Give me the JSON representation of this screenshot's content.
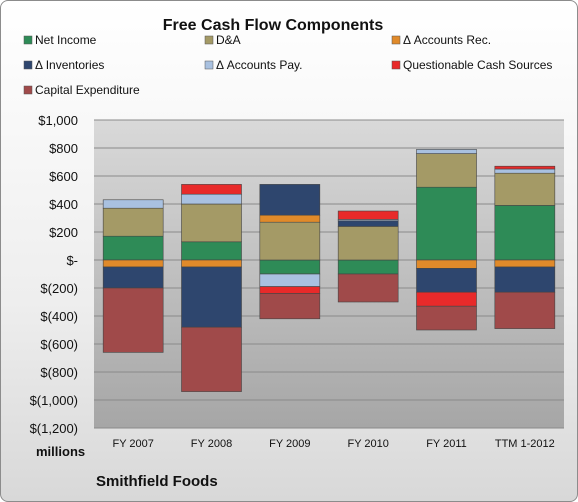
{
  "chart_data": {
    "type": "bar",
    "stacked": true,
    "title": "Free Cash Flow Components",
    "units_label": "millions",
    "company": "Smithfield Foods",
    "categories": [
      "FY 2007",
      "FY 2008",
      "FY 2009",
      "FY 2010",
      "FY 2011",
      "TTM 1-2012"
    ],
    "ylim": [
      -1200,
      1000
    ],
    "yticks": [
      1000,
      800,
      600,
      400,
      200,
      0,
      -200,
      -400,
      -600,
      -800,
      -1000,
      -1200
    ],
    "ytick_labels": [
      "$1,000",
      "$800",
      "$600",
      "$400",
      "$200",
      "$-",
      "$(200)",
      "$(400)",
      "$(600)",
      "$(800)",
      "$(1,000)",
      "$(1,200)"
    ],
    "grid": true,
    "legend_position": "top",
    "series": [
      {
        "name": "Net Income",
        "color": "#2e8b57",
        "values": [
          170,
          130,
          -100,
          -100,
          520,
          390
        ]
      },
      {
        "name": "D&A",
        "color": "#a49a66",
        "values": [
          200,
          270,
          270,
          240,
          240,
          230
        ]
      },
      {
        "name": "Δ Accounts Rec.",
        "color": "#e08a2a",
        "values": [
          -50,
          -50,
          50,
          0,
          -60,
          -50
        ]
      },
      {
        "name": "Δ Inventories",
        "color": "#2e466e",
        "values": [
          -150,
          -430,
          220,
          40,
          -170,
          -180
        ]
      },
      {
        "name": "Δ Accounts Pay.",
        "color": "#a9c1e0",
        "values": [
          60,
          70,
          -90,
          10,
          30,
          30
        ]
      },
      {
        "name": "Questionable Cash Sources",
        "color": "#e82a2a",
        "values": [
          0,
          70,
          -50,
          60,
          -100,
          20
        ]
      },
      {
        "name": "Capital Expenditure",
        "color": "#a04a4a",
        "values": [
          -460,
          -460,
          -180,
          -200,
          -170,
          -260
        ]
      }
    ]
  }
}
